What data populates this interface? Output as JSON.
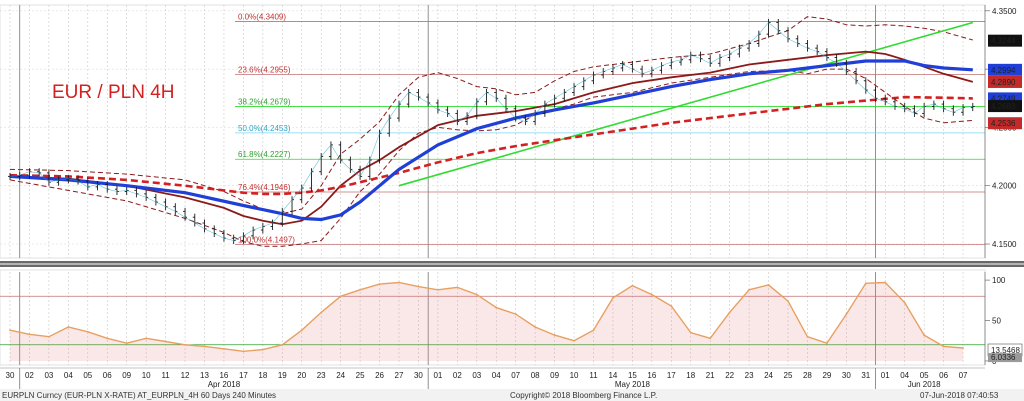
{
  "title": "EUR / PLN 4H",
  "colors": {
    "price": "#1a1a1a",
    "ma_blue": "#1f3fd6",
    "ma_red_dashed": "#d42020",
    "ma_dark_red": "#8b1a1a",
    "bollinger": "#8b1a1a",
    "trendline": "#2edb2e",
    "fib_line": "#c07070",
    "fib_text_red": "#c03030",
    "fib_text_green": "#2ea02e",
    "fib_text_blue": "#2aa6c8",
    "stoch_line": "#e8a060",
    "stoch_fill": "#e28080",
    "tag_blue": "#1f3fd6",
    "tag_red": "#c42a2a",
    "tag_black": "#111111",
    "tag_grey": "#9a9a9a"
  },
  "price_axis": {
    "ticks": [
      4.15,
      4.2,
      4.25,
      4.3,
      4.35
    ],
    "tick_labels": [
      "4.1500",
      "4.2000",
      "4.2500",
      "4.3000",
      "4.3500"
    ],
    "ylim": [
      4.138,
      4.355
    ]
  },
  "price_tags": [
    {
      "label": "4.3244",
      "value": 4.3244,
      "color": "tag_black"
    },
    {
      "label": "4.2994",
      "value": 4.2994,
      "color": "tag_blue"
    },
    {
      "label": "4.2890",
      "value": 4.289,
      "color": "tag_red"
    },
    {
      "label": "4.2749",
      "value": 4.2749,
      "color": "tag_blue"
    },
    {
      "label": "4.2683",
      "value": 4.2683,
      "color": "tag_black"
    },
    {
      "label": "4.2536",
      "value": 4.2536,
      "color": "tag_red"
    }
  ],
  "fib_levels": [
    {
      "label": "0.0%(4.3409)",
      "value": 4.3409,
      "color": "fib_text_red"
    },
    {
      "label": "23.6%(4.2955)",
      "value": 4.2955,
      "color": "fib_text_red"
    },
    {
      "label": "38.2%(4.2679)",
      "value": 4.2679,
      "color": "fib_text_green"
    },
    {
      "label": "50.0%(4.2453)",
      "value": 4.2453,
      "color": "fib_text_blue"
    },
    {
      "label": "61.8%(4.2227)",
      "value": 4.2227,
      "color": "fib_text_green"
    },
    {
      "label": "76.4%(4.1946)",
      "value": 4.1946,
      "color": "fib_text_red"
    },
    {
      "label": "100.0%(4.1497)",
      "value": 4.1497,
      "color": "fib_text_red"
    }
  ],
  "stoch_axis": {
    "ticks": [
      0,
      50,
      100
    ],
    "tick_labels": [
      "0",
      "50",
      "100"
    ],
    "ylim": [
      -5,
      110
    ],
    "levels": [
      20,
      80
    ],
    "tag_label": "13.5468",
    "tag_value": 13.5468,
    "tag2_label": "6.0336",
    "tag2_value": 6.0336
  },
  "x_axis": {
    "day_labels": [
      "30",
      "02",
      "03",
      "04",
      "05",
      "06",
      "09",
      "10",
      "11",
      "12",
      "13",
      "16",
      "17",
      "18",
      "19",
      "20",
      "23",
      "24",
      "25",
      "26",
      "27",
      "30",
      "01",
      "02",
      "03",
      "04",
      "07",
      "08",
      "09",
      "10",
      "11",
      "14",
      "15",
      "16",
      "17",
      "18",
      "21",
      "22",
      "23",
      "24",
      "25",
      "28",
      "29",
      "30",
      "31",
      "01",
      "04",
      "05",
      "06",
      "07"
    ],
    "month_labels": [
      {
        "label": "Apr 2018",
        "index": 11
      },
      {
        "label": "May 2018",
        "index": 32
      },
      {
        "label": "Jun 2018",
        "index": 47
      }
    ],
    "month_boundaries": [
      1,
      22,
      45
    ]
  },
  "footer": {
    "left": "EURPLN Curncy (EUR-PLN X-RATE) AT_EURPLN_4H 60 Days 240 Minutes",
    "center": "Copyright© 2018 Bloomberg Finance L.P.",
    "right": "07-Jun-2018 07:40:53"
  },
  "chart_data": {
    "type": "line",
    "title": "EUR / PLN 4H",
    "x_unit": "trading day (Mar 30 2018 – Jun 07 2018), 4H bars",
    "ylim": [
      4.138,
      4.355
    ],
    "series": [
      {
        "name": "EURPLN",
        "x": [
          0,
          0.5,
          1,
          1.5,
          2,
          2.5,
          3,
          3.5,
          4,
          4.5,
          5,
          5.5,
          6,
          6.5,
          7,
          7.5,
          8,
          8.5,
          9,
          9.5,
          10,
          10.5,
          11,
          11.5,
          12,
          12.5,
          13,
          13.5,
          14,
          14.5,
          15,
          15.5,
          16,
          16.5,
          17,
          17.5,
          18,
          18.5,
          19,
          19.5,
          20,
          20.5,
          21,
          21.5,
          22,
          22.5,
          23,
          23.5,
          24,
          24.5,
          25,
          25.5,
          26,
          26.5,
          27,
          27.5,
          28,
          28.5,
          29,
          29.5,
          30,
          30.5,
          31,
          31.5,
          32,
          32.5,
          33,
          33.5,
          34,
          34.5,
          35,
          35.5,
          36,
          36.5,
          37,
          37.5,
          38,
          38.5,
          39,
          39.5,
          40,
          40.5,
          41,
          41.5,
          42,
          42.5,
          43,
          43.5,
          44,
          44.5,
          45,
          45.5,
          46,
          46.5,
          47,
          47.5,
          48,
          48.5,
          49,
          49.5
        ],
        "values": [
          4.208,
          4.209,
          4.212,
          4.211,
          4.203,
          4.205,
          4.206,
          4.204,
          4.199,
          4.201,
          4.197,
          4.195,
          4.196,
          4.193,
          4.19,
          4.186,
          4.182,
          4.178,
          4.173,
          4.168,
          4.163,
          4.159,
          4.155,
          4.153,
          4.157,
          4.162,
          4.165,
          4.168,
          4.178,
          4.188,
          4.198,
          4.212,
          4.225,
          4.235,
          4.222,
          4.214,
          4.208,
          4.222,
          4.245,
          4.258,
          4.27,
          4.28,
          4.276,
          4.271,
          4.265,
          4.262,
          4.255,
          4.26,
          4.272,
          4.28,
          4.275,
          4.266,
          4.258,
          4.255,
          4.262,
          4.27,
          4.275,
          4.28,
          4.285,
          4.29,
          4.295,
          4.298,
          4.301,
          4.304,
          4.3,
          4.296,
          4.299,
          4.303,
          4.306,
          4.308,
          4.312,
          4.309,
          4.305,
          4.31,
          4.313,
          4.318,
          4.322,
          4.33,
          4.34,
          4.333,
          4.326,
          4.322,
          4.318,
          4.315,
          4.31,
          4.305,
          4.298,
          4.29,
          4.282,
          4.275,
          4.272,
          4.268,
          4.266,
          4.262,
          4.268,
          4.27,
          4.266,
          4.263,
          4.267,
          4.268
        ]
      },
      {
        "name": "MA blue",
        "x": [
          0,
          3,
          6,
          9,
          12,
          14,
          15,
          16,
          17,
          18,
          19,
          20,
          22,
          24,
          26,
          28,
          30,
          32,
          34,
          36,
          38,
          40,
          42,
          44,
          46,
          47,
          48,
          49.5
        ],
        "values": [
          4.208,
          4.205,
          4.2,
          4.194,
          4.183,
          4.176,
          4.172,
          4.171,
          4.175,
          4.186,
          4.2,
          4.214,
          4.235,
          4.249,
          4.258,
          4.265,
          4.271,
          4.278,
          4.285,
          4.291,
          4.296,
          4.299,
          4.303,
          4.307,
          4.307,
          4.303,
          4.301,
          4.2994
        ]
      },
      {
        "name": "MA red dashed",
        "x": [
          0,
          3,
          6,
          9,
          11,
          12,
          13,
          14,
          15,
          16,
          17,
          18,
          20,
          22,
          24,
          26,
          28,
          30,
          32,
          34,
          36,
          38,
          40,
          42,
          44,
          46,
          48,
          49.5
        ],
        "values": [
          4.209,
          4.208,
          4.205,
          4.2,
          4.196,
          4.194,
          4.193,
          4.193,
          4.194,
          4.196,
          4.199,
          4.203,
          4.211,
          4.22,
          4.228,
          4.234,
          4.239,
          4.244,
          4.249,
          4.254,
          4.258,
          4.262,
          4.266,
          4.27,
          4.273,
          4.276,
          4.2755,
          4.2749
        ]
      },
      {
        "name": "MA dark red",
        "x": [
          0,
          3,
          6,
          9,
          11,
          12,
          13,
          14,
          15,
          16,
          17,
          18,
          19,
          20,
          22,
          24,
          26,
          28,
          30,
          32,
          34,
          36,
          38,
          40,
          42,
          44,
          45,
          46,
          47,
          48,
          49.5
        ],
        "values": [
          4.208,
          4.206,
          4.2,
          4.19,
          4.181,
          4.174,
          4.17,
          4.167,
          4.17,
          4.182,
          4.2,
          4.213,
          4.222,
          4.233,
          4.252,
          4.26,
          4.264,
          4.27,
          4.28,
          4.288,
          4.293,
          4.297,
          4.304,
          4.308,
          4.312,
          4.315,
          4.313,
          4.308,
          4.302,
          4.296,
          4.289
        ]
      },
      {
        "name": "Bollinger upper",
        "x": [
          0,
          3,
          6,
          9,
          11,
          12,
          13,
          14,
          15,
          16,
          17,
          18,
          19,
          20,
          21,
          22,
          23,
          24,
          25,
          26,
          27,
          28,
          29,
          30,
          32,
          34,
          36,
          38,
          40,
          41,
          42,
          43,
          44,
          45,
          46,
          47,
          48,
          49.5
        ],
        "values": [
          4.214,
          4.213,
          4.21,
          4.205,
          4.195,
          4.187,
          4.18,
          4.176,
          4.18,
          4.2,
          4.227,
          4.24,
          4.255,
          4.278,
          4.293,
          4.297,
          4.292,
          4.285,
          4.283,
          4.278,
          4.28,
          4.29,
          4.298,
          4.302,
          4.306,
          4.31,
          4.313,
          4.322,
          4.333,
          4.345,
          4.343,
          4.338,
          4.337,
          4.338,
          4.337,
          4.335,
          4.332,
          4.325
        ]
      },
      {
        "name": "Bollinger lower",
        "x": [
          0,
          3,
          6,
          9,
          11,
          12,
          13,
          14,
          15,
          16,
          17,
          18,
          19,
          20,
          21,
          22,
          23,
          24,
          25,
          26,
          27,
          28,
          29,
          30,
          32,
          34,
          36,
          38,
          40,
          41,
          42,
          43,
          44,
          45,
          46,
          47,
          48,
          49.5
        ],
        "values": [
          4.205,
          4.196,
          4.187,
          4.172,
          4.16,
          4.152,
          4.148,
          4.148,
          4.15,
          4.153,
          4.172,
          4.195,
          4.21,
          4.23,
          4.245,
          4.25,
          4.248,
          4.247,
          4.248,
          4.252,
          4.261,
          4.266,
          4.27,
          4.276,
          4.28,
          4.288,
          4.293,
          4.298,
          4.299,
          4.296,
          4.3,
          4.3,
          4.292,
          4.28,
          4.268,
          4.258,
          4.254,
          4.256
        ]
      },
      {
        "name": "Trendline",
        "x": [
          20,
          49.5
        ],
        "values": [
          4.2,
          4.34
        ]
      },
      {
        "name": "Stochastic",
        "x": [
          0,
          1,
          2,
          3,
          4,
          5,
          6,
          7,
          8,
          9,
          10,
          11,
          12,
          13,
          14,
          15,
          16,
          17,
          18,
          19,
          20,
          21,
          22,
          23,
          24,
          25,
          26,
          27,
          28,
          29,
          30,
          31,
          32,
          33,
          34,
          35,
          36,
          37,
          38,
          39,
          40,
          41,
          42,
          43,
          44,
          45,
          46,
          47,
          48,
          49
        ],
        "values": [
          38,
          33,
          30,
          42,
          36,
          28,
          22,
          28,
          24,
          20,
          18,
          15,
          12,
          14,
          20,
          38,
          60,
          80,
          88,
          95,
          97,
          92,
          88,
          91,
          82,
          66,
          58,
          42,
          32,
          25,
          38,
          78,
          93,
          82,
          68,
          35,
          28,
          60,
          88,
          94,
          74,
          30,
          22,
          58,
          96,
          97,
          72,
          32,
          18,
          16
        ]
      }
    ]
  }
}
